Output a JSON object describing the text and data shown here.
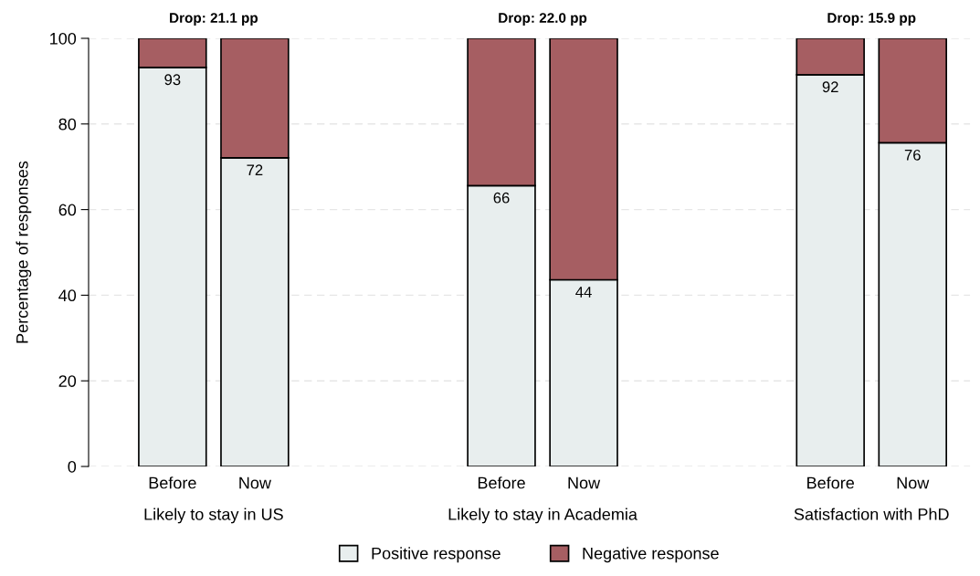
{
  "chart_data": {
    "type": "bar",
    "stacked": true,
    "ylabel": "Percentage of responses",
    "categories": [
      "Before",
      "Now",
      null,
      null,
      "Before",
      "Now",
      null,
      null,
      "Before",
      "Now"
    ],
    "series": [
      {
        "name": "Positive response",
        "color": "#e8eeee",
        "values": [
          93.2,
          72.1,
          null,
          null,
          65.6,
          43.6,
          null,
          null,
          91.5,
          75.6
        ],
        "value_labels": [
          "93",
          "72",
          null,
          null,
          "66",
          "44",
          null,
          null,
          "92",
          "76"
        ]
      },
      {
        "name": "Negative response",
        "color": "#a65e62",
        "values": [
          6.8,
          27.9,
          null,
          null,
          34.4,
          56.4,
          null,
          null,
          8.5,
          24.4
        ]
      }
    ],
    "annotations": [
      "Drop: 21.1 pp",
      "Drop: 22.0 pp",
      "Drop: 15.9 pp",
      "Likely to stay in US",
      "Likely to stay in Academia",
      "Satisfaction with PhD"
    ],
    "ylim": [
      0,
      100
    ],
    "yticks": [
      0,
      20,
      40,
      60,
      80,
      100
    ],
    "grid": "y",
    "legend": "bottom"
  }
}
